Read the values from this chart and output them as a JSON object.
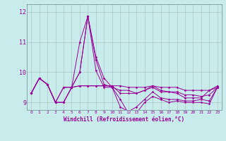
{
  "xlabel": "Windchill (Refroidissement éolien,°C)",
  "background_color": "#c8ecec",
  "grid_color": "#b0c8c8",
  "line_color": "#990099",
  "spine_color": "#7a9a9a",
  "xlim": [
    -0.5,
    23.5
  ],
  "ylim": [
    8.75,
    12.25
  ],
  "yticks": [
    9,
    10,
    11,
    12
  ],
  "xticks": [
    0,
    1,
    2,
    3,
    4,
    5,
    6,
    7,
    8,
    9,
    10,
    11,
    12,
    13,
    14,
    15,
    16,
    17,
    18,
    19,
    20,
    21,
    22,
    23
  ],
  "lines": [
    [
      9.3,
      9.8,
      9.6,
      9.0,
      9.5,
      9.5,
      11.0,
      11.85,
      10.5,
      9.8,
      9.5,
      9.4,
      9.4,
      9.3,
      9.4,
      9.55,
      9.4,
      9.35,
      9.3,
      9.15,
      9.15,
      9.15,
      9.4,
      9.5
    ],
    [
      9.3,
      9.8,
      9.6,
      9.0,
      9.5,
      9.5,
      10.0,
      11.85,
      10.4,
      9.6,
      9.5,
      8.85,
      8.7,
      8.85,
      9.1,
      9.35,
      9.15,
      9.1,
      9.1,
      9.05,
      9.05,
      9.1,
      9.05,
      9.5
    ],
    [
      9.3,
      9.8,
      9.6,
      9.0,
      9.0,
      9.5,
      10.0,
      11.85,
      10.05,
      9.5,
      9.5,
      9.1,
      8.65,
      8.65,
      9.0,
      9.2,
      9.1,
      9.0,
      9.05,
      9.0,
      9.0,
      9.0,
      8.95,
      9.5
    ],
    [
      9.3,
      9.8,
      9.6,
      9.0,
      9.0,
      9.5,
      9.55,
      9.55,
      9.55,
      9.55,
      9.55,
      9.3,
      9.3,
      9.3,
      9.4,
      9.5,
      9.35,
      9.35,
      9.35,
      9.25,
      9.25,
      9.2,
      9.25,
      9.5
    ],
    [
      9.3,
      9.8,
      9.6,
      9.0,
      9.0,
      9.5,
      9.55,
      9.55,
      9.55,
      9.55,
      9.55,
      9.55,
      9.5,
      9.5,
      9.5,
      9.55,
      9.5,
      9.5,
      9.5,
      9.4,
      9.4,
      9.4,
      9.4,
      9.55
    ]
  ]
}
